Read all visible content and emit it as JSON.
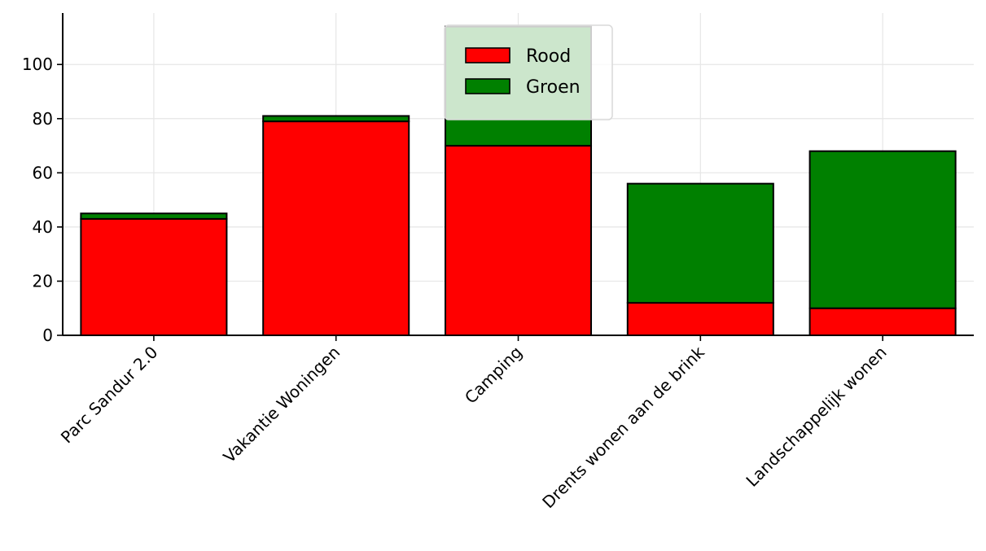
{
  "chart_data": {
    "type": "bar",
    "stacked": true,
    "categories": [
      "Parc Sandur 2.0",
      "Vakantie Woningen",
      "Camping",
      "Drents wonen aan de brink",
      "Landschappelijk wonen"
    ],
    "series": [
      {
        "name": "Rood",
        "color": "#ff0000",
        "values": [
          43,
          79,
          70,
          12,
          10
        ]
      },
      {
        "name": "Groen",
        "color": "#008000",
        "values": [
          2,
          2,
          44,
          44,
          58
        ]
      }
    ],
    "ylim": [
      0,
      119
    ],
    "yticks": [
      0,
      20,
      40,
      60,
      80,
      100
    ],
    "grid": true,
    "legend_position": "top-center",
    "xtick_rotation": 45,
    "title": "",
    "xlabel": "",
    "ylabel": ""
  }
}
